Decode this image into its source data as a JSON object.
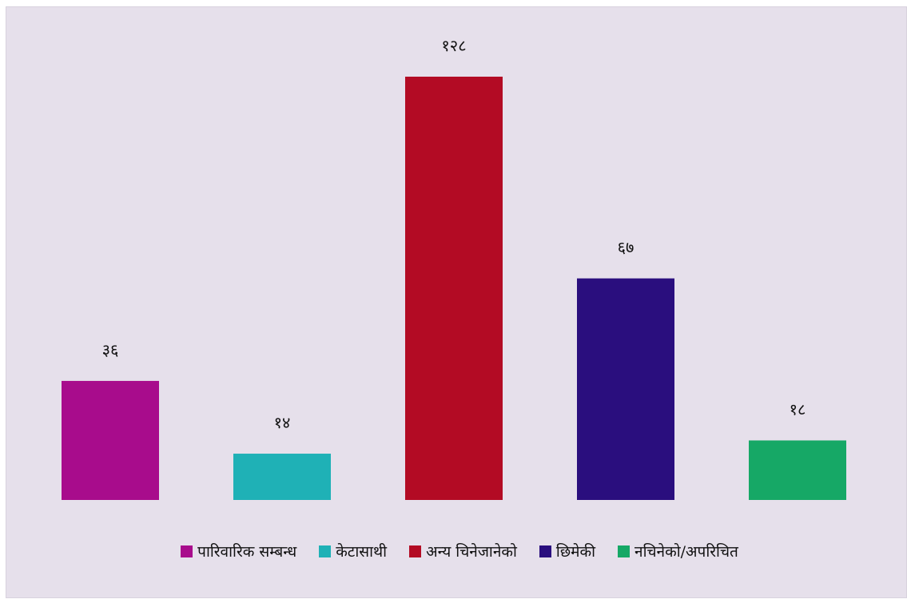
{
  "chart_data": {
    "type": "bar",
    "title": "",
    "xlabel": "",
    "ylabel": "",
    "ylim": [
      0,
      128
    ],
    "grid": false,
    "legend_position": "bottom",
    "categories": [
      "पारिवारिक सम्बन्ध",
      "केटासाथी",
      "अन्य चिनेजानेको",
      "छिमेकी",
      "नचिनेको/अपरिचित"
    ],
    "values": [
      36,
      14,
      128,
      67,
      18
    ],
    "value_labels": [
      "३६",
      "१४",
      "१२८",
      "६७",
      "१८"
    ],
    "colors": [
      "#a80c8c",
      "#1fb1b6",
      "#b30b24",
      "#2a0e7e",
      "#16a866"
    ]
  },
  "legend": {
    "items": [
      {
        "label": "पारिवारिक सम्बन्ध",
        "color": "#a80c8c"
      },
      {
        "label": "केटासाथी",
        "color": "#1fb1b6"
      },
      {
        "label": "अन्य चिनेजानेको",
        "color": "#b30b24"
      },
      {
        "label": "छिमेकी",
        "color": "#2a0e7e"
      },
      {
        "label": "नचिनेको/अपरिचित",
        "color": "#16a866"
      }
    ]
  }
}
